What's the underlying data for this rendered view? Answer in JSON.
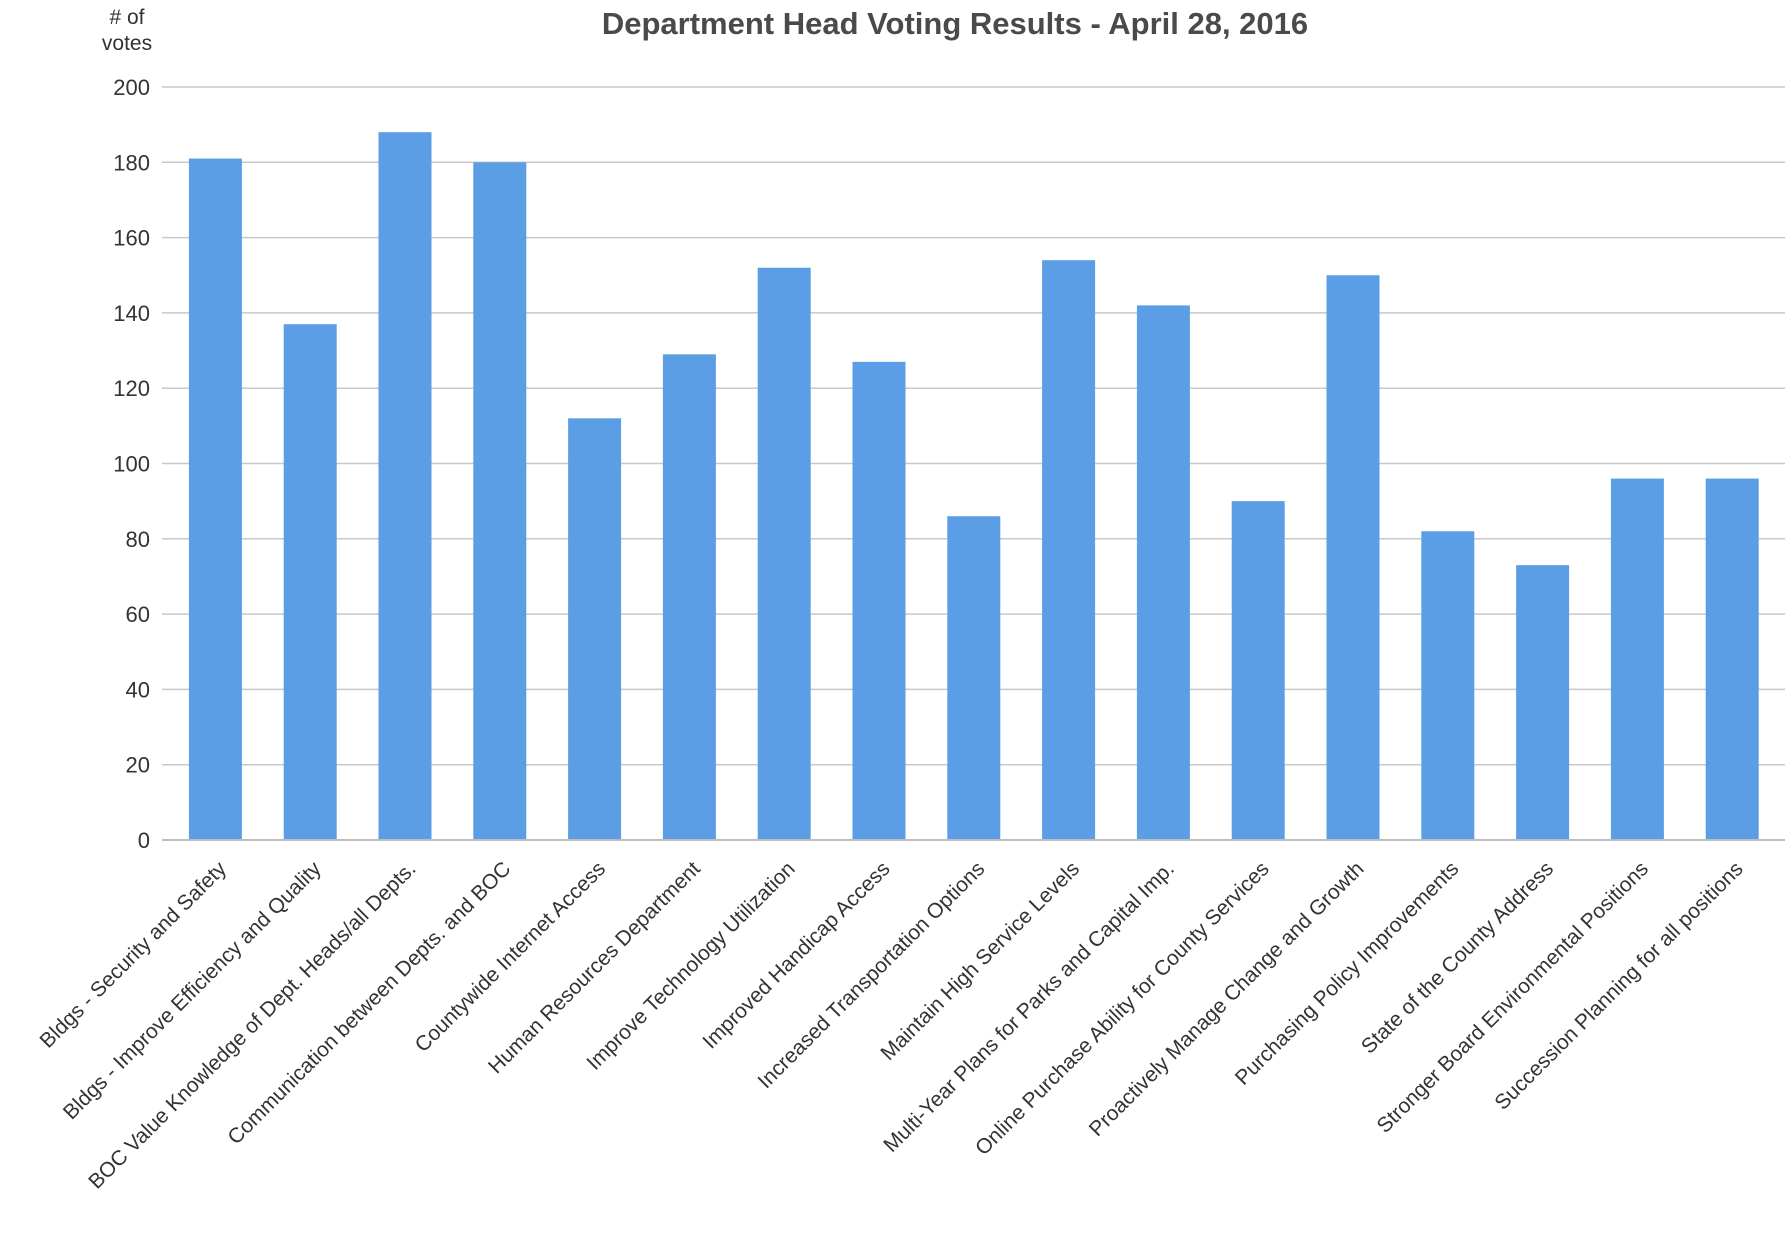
{
  "chart_data": {
    "type": "bar",
    "title": "Department Head Voting Results - April 28, 2016",
    "ylabel": [
      "# of",
      "votes"
    ],
    "xlabel": "",
    "ylim": [
      0,
      200
    ],
    "yticks": [
      0,
      20,
      40,
      60,
      80,
      100,
      120,
      140,
      160,
      180,
      200
    ],
    "grid": true,
    "bar_color": "#5b9ee6",
    "categories": [
      "Bldgs - Security and Safety",
      "Bldgs - Improve Efficiency and Quality",
      "BOC Value Knowledge of Dept. Heads/all Depts.",
      "Communication between Depts. and BOC",
      "Countywide Internet Access",
      "Human Resources Department",
      "Improve Technology Utilization",
      "Improved Handicap Access",
      "Increased Transportation Options",
      "Maintain High Service Levels",
      "Multi-Year Plans for Parks and Capital Imp.",
      "Online Purchase Ability for County Services",
      "Proactively Manage Change and Growth",
      "Purchasing Policy Improvements",
      "State of the County Address",
      "Stronger Board Environmental Positions",
      "Succession Planning for all positions"
    ],
    "values": [
      181,
      137,
      188,
      180,
      112,
      129,
      152,
      127,
      86,
      154,
      142,
      90,
      150,
      82,
      73,
      96,
      96
    ]
  }
}
